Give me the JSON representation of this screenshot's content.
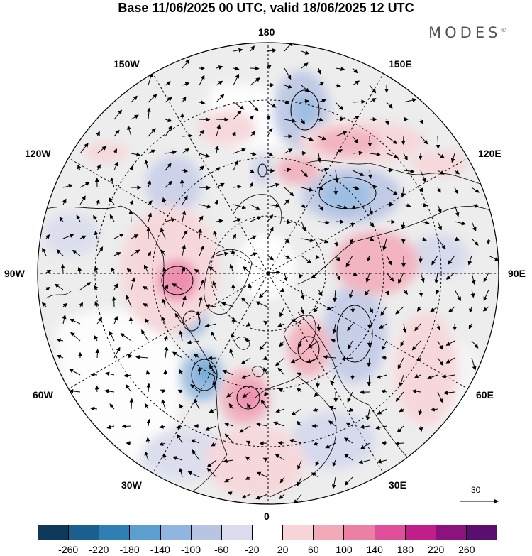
{
  "title": "Base 11/06/2025 00 UTC, valid 18/06/2025 12 UTC",
  "brand": "MODES",
  "brand_mark": "©",
  "longitude_labels": {
    "top": "180",
    "bottom": "0",
    "left": "90W",
    "right": "90E",
    "upper_left_1": "150W",
    "upper_left_2": "120W",
    "upper_right_1": "150E",
    "upper_right_2": "120E",
    "lower_left_1": "60W",
    "lower_left_2": "30W",
    "lower_right_1": "60E",
    "lower_right_2": "30E"
  },
  "colorbar": {
    "colors": [
      "#0d3a5a",
      "#1b5f8e",
      "#2f7fb5",
      "#5b9fcf",
      "#8fb6df",
      "#b9c4e3",
      "#dcdcef",
      "#ffffff",
      "#f7d4d8",
      "#f2a9b8",
      "#ec7fa4",
      "#e0509a",
      "#c01f8a",
      "#8c137f",
      "#5a0f6e"
    ],
    "ticks": [
      "-260",
      "-220",
      "-180",
      "-140",
      "-100",
      "-60",
      "-20",
      "20",
      "60",
      "100",
      "140",
      "180",
      "220",
      "260"
    ]
  },
  "reference_vector": "30",
  "colors": {
    "land_gray": "#ebebeb",
    "ocean": "#ffffff",
    "coast": "#000000"
  }
}
